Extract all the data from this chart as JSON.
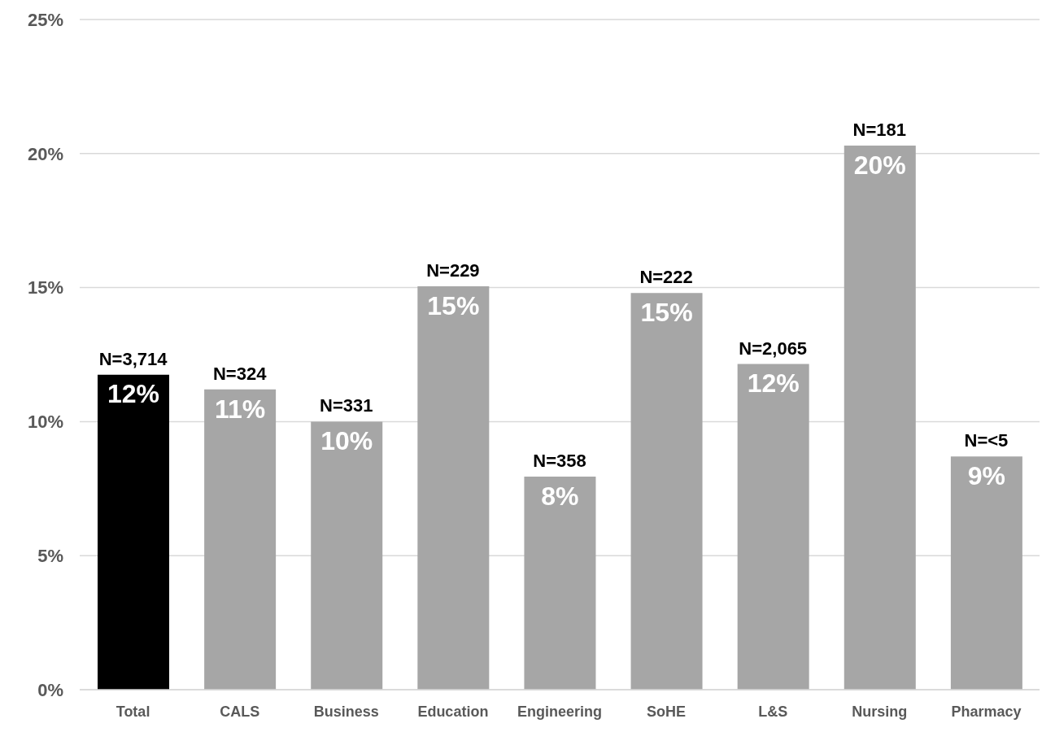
{
  "chart_data": {
    "type": "bar",
    "categories": [
      "Total",
      "CALS",
      "Business",
      "Education",
      "Engineering",
      "SoHE",
      "L&S",
      "Nursing",
      "Pharmacy"
    ],
    "values": [
      11.75,
      11.2,
      10.0,
      15.05,
      7.95,
      14.8,
      12.15,
      20.3,
      8.7
    ],
    "colors": [
      "#000000",
      "#a6a6a6",
      "#a6a6a6",
      "#a6a6a6",
      "#a6a6a6",
      "#a6a6a6",
      "#a6a6a6",
      "#a6a6a6",
      "#a6a6a6"
    ],
    "value_labels": [
      "12%",
      "11%",
      "10%",
      "15%",
      "8%",
      "15%",
      "12%",
      "20%",
      "9%"
    ],
    "annotations": [
      {
        "text": "N=3,714",
        "x": "Total",
        "y": 11.75
      },
      {
        "text": "N=324",
        "x": "CALS",
        "y": 11.2
      },
      {
        "text": "N=331",
        "x": "Business",
        "y": 10.0
      },
      {
        "text": "N=229",
        "x": "Education",
        "y": 15.05
      },
      {
        "text": "N=358",
        "x": "Engineering",
        "y": 7.95
      },
      {
        "text": "N=222",
        "x": "SoHE",
        "y": 14.8
      },
      {
        "text": "N=2,065",
        "x": "L&S",
        "y": 12.15
      },
      {
        "text": "N=181",
        "x": "Nursing",
        "y": 20.3
      },
      {
        "text": "N=<5",
        "x": "Pharmacy",
        "y": 8.7
      }
    ],
    "ylim": [
      0,
      25
    ],
    "yticks": [
      {
        "value": 0,
        "label": "0%"
      },
      {
        "value": 5,
        "label": "5%"
      },
      {
        "value": 10,
        "label": "10%"
      },
      {
        "value": 15,
        "label": "15%"
      },
      {
        "value": 20,
        "label": "20%"
      },
      {
        "value": 25,
        "label": "25%"
      }
    ],
    "grid": "y",
    "legend": false
  }
}
